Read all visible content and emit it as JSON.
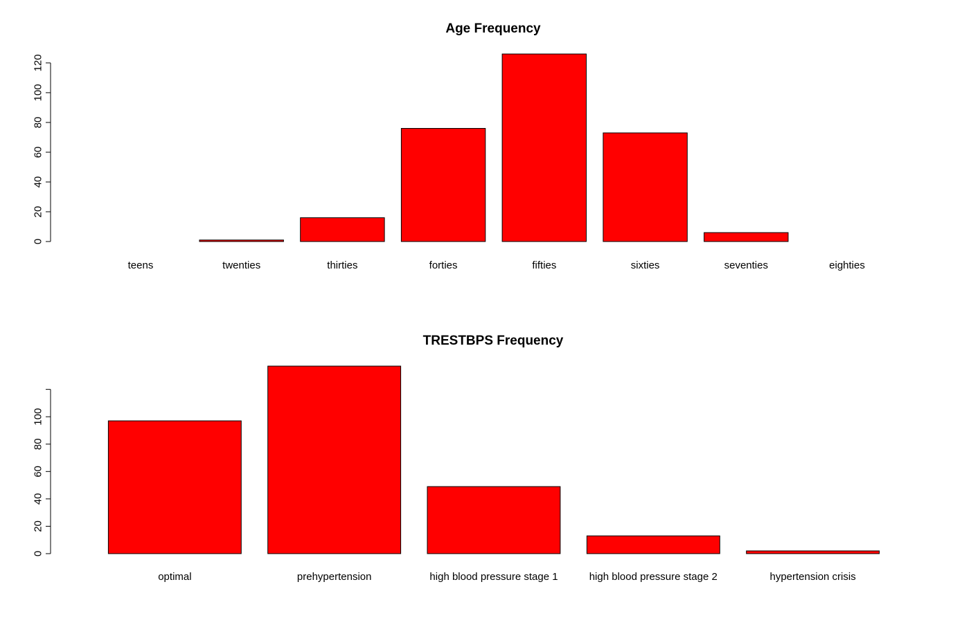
{
  "chart_data": [
    {
      "type": "bar",
      "title": "Age Frequency",
      "xlabel": "",
      "ylabel": "",
      "categories": [
        "teens",
        "twenties",
        "thirties",
        "forties",
        "fifties",
        "sixties",
        "seventies",
        "eighties"
      ],
      "values": [
        0,
        1,
        16,
        76,
        126,
        73,
        6,
        0
      ],
      "ylim": [
        0,
        126
      ],
      "y_ticks": [
        0,
        20,
        40,
        60,
        80,
        100,
        120
      ],
      "y_tick_labels": [
        "0",
        "20",
        "40",
        "60",
        "80",
        "100",
        "120"
      ],
      "bar_color": "#FF0000",
      "grid": false,
      "legend": false
    },
    {
      "type": "bar",
      "title": "TRESTBPS Frequency",
      "xlabel": "",
      "ylabel": "",
      "categories": [
        "optimal",
        "prehypertension",
        "high blood pressure stage 1",
        "high blood pressure stage 2",
        "hypertension crisis"
      ],
      "values": [
        97,
        137,
        49,
        13,
        2
      ],
      "ylim": [
        0,
        137
      ],
      "y_ticks": [
        0,
        20,
        40,
        60,
        80,
        100,
        120
      ],
      "y_tick_labels": [
        "0",
        "20",
        "40",
        "60",
        "80",
        "100",
        ""
      ],
      "bar_color": "#FF0000",
      "grid": false,
      "legend": false
    }
  ]
}
